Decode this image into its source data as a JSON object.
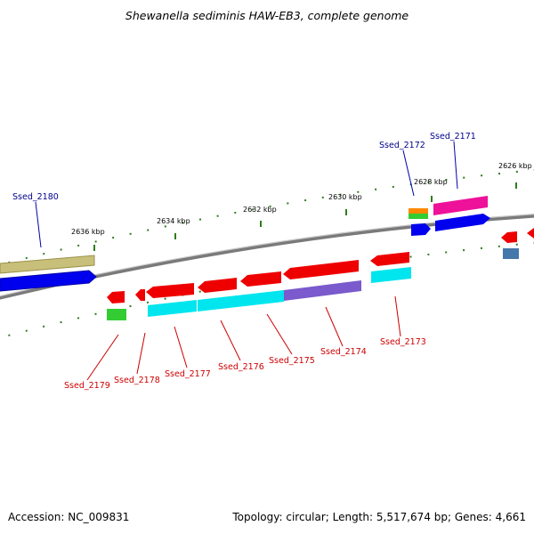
{
  "title": "Shewanella sediminis HAW-EB3, complete genome",
  "footer": {
    "accession": "Accession: NC_009831",
    "summary": "Topology: circular; Length: 5,517,674 bp; Genes: 4,661"
  },
  "ticks": [
    "2636 kbp",
    "2634 kbp",
    "2632 kbp",
    "2630 kbp",
    "2628 kbp",
    "2626 kbp"
  ],
  "genes_top": [
    "Ssed_2180",
    "Ssed_2172",
    "Ssed_2171"
  ],
  "genes_bottom": [
    "Ssed_2179",
    "Ssed_2178",
    "Ssed_2177",
    "Ssed_2176",
    "Ssed_2175",
    "Ssed_2174",
    "Ssed_2173"
  ],
  "colors": {
    "forward_strand_label": "#00008b",
    "reverse_strand_label": "#cc0000",
    "backbone": "#808080",
    "tick": "#2e7d1a"
  }
}
